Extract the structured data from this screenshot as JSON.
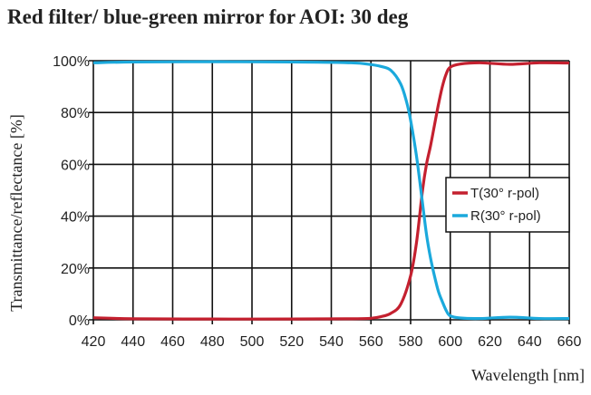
{
  "chart_data": {
    "type": "line",
    "title": "Red filter/ blue-green mirror for AOI: 30 deg",
    "xlabel": "Wavelength [nm]",
    "ylabel": "Transmittance/reflectance [%]",
    "xlim": [
      420,
      660
    ],
    "ylim": [
      0,
      100
    ],
    "xticks": [
      420,
      440,
      460,
      480,
      500,
      520,
      540,
      560,
      580,
      600,
      620,
      640,
      660
    ],
    "yticks": [
      0,
      20,
      40,
      60,
      80,
      100
    ],
    "ytick_labels": [
      "0%",
      "20%",
      "40%",
      "60%",
      "80%",
      "100%"
    ],
    "grid": true,
    "legend_position": "center-right",
    "series": [
      {
        "name": "T(30° r-pol)",
        "color": "#c4202f",
        "x": [
          420,
          440,
          480,
          520,
          550,
          560,
          565,
          570,
          575,
          580,
          583,
          586,
          588,
          590,
          592,
          594,
          596,
          598,
          600,
          605,
          615,
          630,
          645,
          660
        ],
        "y": [
          0.8,
          0.4,
          0.3,
          0.3,
          0.4,
          0.6,
          1.2,
          2.5,
          6,
          17,
          30,
          50,
          60,
          67,
          75,
          83,
          90,
          95,
          97.5,
          98.7,
          99.2,
          98.6,
          99.2,
          99.1
        ]
      },
      {
        "name": "R(30° r-pol)",
        "color": "#1ba9dc",
        "x": [
          420,
          440,
          480,
          520,
          550,
          560,
          565,
          570,
          575,
          578,
          580,
          583,
          586,
          588,
          590,
          592,
          594,
          596,
          598,
          600,
          605,
          615,
          630,
          645,
          660
        ],
        "y": [
          99.2,
          99.5,
          99.6,
          99.5,
          99.2,
          98.5,
          97.8,
          96.3,
          91,
          84,
          77,
          63,
          45,
          33,
          24,
          17,
          11,
          7,
          3.5,
          1.5,
          0.7,
          0.5,
          1.0,
          0.5,
          0.5
        ]
      }
    ]
  }
}
